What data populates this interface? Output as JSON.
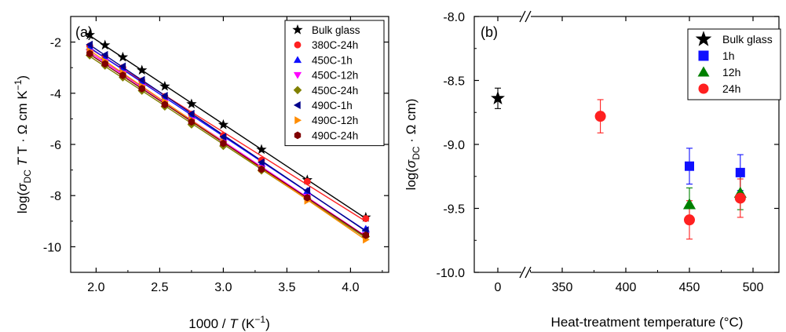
{
  "chart_data": [
    {
      "type": "scatter",
      "panel_label": "(a)",
      "xlabel": {
        "prefix": "1000 / ",
        "var": "T",
        "unit": " (K",
        "sup": "−1",
        "close": ")"
      },
      "ylabel": {
        "pre": "log(",
        "sigma": "σ",
        "sub": "DC",
        "mid": " T · Ω cm K",
        "sup": "−1",
        "close": ")"
      },
      "xlim": [
        1.8,
        4.3
      ],
      "ylim": [
        -11,
        -1
      ],
      "xticks": [
        2.0,
        2.5,
        3.0,
        3.5,
        4.0
      ],
      "xtick_labels": [
        "2.0",
        "2.5",
        "3.0",
        "3.5",
        "4.0"
      ],
      "yticks": [
        -2,
        -4,
        -6,
        -8,
        -10
      ],
      "ytick_labels": [
        "-2",
        "-4",
        "-6",
        "-8",
        "-10"
      ],
      "x": [
        1.95,
        2.07,
        2.21,
        2.36,
        2.54,
        2.75,
        3.0,
        3.3,
        3.66,
        4.12
      ],
      "legend_position": "top-right",
      "grid": false,
      "fit_lines": true,
      "series": [
        {
          "name": "Bulk glass",
          "marker": "star",
          "color": "#000000",
          "values": [
            -1.72,
            -2.12,
            -2.59,
            -3.1,
            -3.73,
            -4.42,
            -5.23,
            -6.2,
            -7.39,
            -8.85
          ]
        },
        {
          "name": "380C-24h",
          "marker": "circle",
          "color": "#ff2020",
          "values": [
            -2.15,
            -2.56,
            -3.0,
            -3.52,
            -4.13,
            -4.82,
            -5.65,
            -6.62,
            -7.45,
            -8.9
          ]
        },
        {
          "name": "450C-1h",
          "marker": "triangle-up",
          "color": "#1010ff",
          "values": [
            -2.2,
            -2.6,
            -3.03,
            -3.56,
            -4.16,
            -4.88,
            -5.74,
            -6.77,
            -7.82,
            -9.3
          ]
        },
        {
          "name": "450C-12h",
          "marker": "triangle-down",
          "color": "#ff00ff",
          "values": [
            -2.4,
            -2.78,
            -3.23,
            -3.76,
            -4.36,
            -5.06,
            -5.92,
            -6.92,
            -8.05,
            -9.55
          ]
        },
        {
          "name": "450C-24h",
          "marker": "diamond",
          "color": "#808000",
          "values": [
            -2.52,
            -2.92,
            -3.38,
            -3.9,
            -4.52,
            -5.22,
            -6.06,
            -7.02,
            -8.12,
            -9.6
          ]
        },
        {
          "name": "490C-1h",
          "marker": "triangle-left",
          "color": "#00008b",
          "values": [
            -2.1,
            -2.5,
            -2.95,
            -3.48,
            -4.1,
            -4.8,
            -5.7,
            -6.7,
            -7.8,
            -9.35
          ]
        },
        {
          "name": "490C-12h",
          "marker": "triangle-right",
          "color": "#ff8c00",
          "values": [
            -2.35,
            -2.75,
            -3.2,
            -3.72,
            -4.33,
            -5.04,
            -5.9,
            -6.94,
            -8.2,
            -9.72
          ]
        },
        {
          "name": "490C-24h",
          "marker": "hexagon",
          "color": "#800000",
          "values": [
            -2.45,
            -2.85,
            -3.3,
            -3.82,
            -4.44,
            -5.12,
            -5.96,
            -6.97,
            -8.08,
            -9.55
          ]
        }
      ]
    },
    {
      "type": "scatter",
      "panel_label": "(b)",
      "xlabel": "Heat-treatment temperature (°C)",
      "ylabel": {
        "pre": "log(",
        "sigma": "σ",
        "sub": "DC",
        "mid": " · Ω cm",
        "close": ")"
      },
      "ylim": [
        -10.0,
        -8.0
      ],
      "yticks": [
        -8.0,
        -8.5,
        -9.0,
        -9.5,
        -10.0
      ],
      "ytick_labels": [
        "-8.0",
        "-8.5",
        "-9.0",
        "-9.5",
        "-10.0"
      ],
      "xticks": [
        0,
        350,
        400,
        450,
        500
      ],
      "xtick_labels": [
        "0",
        "350",
        "400",
        "450",
        "500"
      ],
      "axis_break": {
        "after": 0,
        "before": 350,
        "mark": "//"
      },
      "legend_position": "top-right",
      "grid": false,
      "series": [
        {
          "name": "Bulk glass",
          "marker": "star",
          "color": "#000000",
          "points": [
            {
              "x": 0,
              "y": -8.64,
              "err": 0.08
            }
          ]
        },
        {
          "name": "1h",
          "marker": "square",
          "color": "#1010ff",
          "points": [
            {
              "x": 450,
              "y": -9.17,
              "err": 0.14
            },
            {
              "x": 490,
              "y": -9.22,
              "err": 0.14
            }
          ]
        },
        {
          "name": "12h",
          "marker": "triangle-up",
          "color": "#008000",
          "points": [
            {
              "x": 450,
              "y": -9.47,
              "err": 0.13
            },
            {
              "x": 490,
              "y": -9.38,
              "err": 0.13
            }
          ]
        },
        {
          "name": "24h",
          "marker": "circle",
          "color": "#ff2020",
          "points": [
            {
              "x": 380,
              "y": -8.78,
              "err": 0.13
            },
            {
              "x": 450,
              "y": -9.59,
              "err": 0.15
            },
            {
              "x": 490,
              "y": -9.42,
              "err": 0.15
            }
          ]
        }
      ]
    }
  ]
}
